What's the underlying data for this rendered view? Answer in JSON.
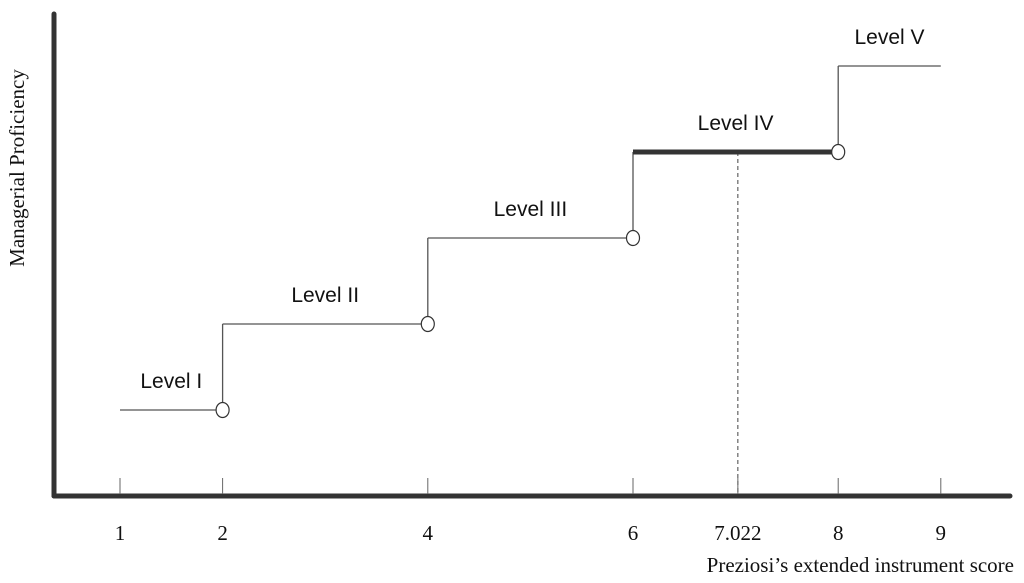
{
  "chart_data": {
    "type": "line",
    "title": "",
    "xlabel": "Preziosi’s extended instrument score",
    "ylabel": "Managerial Proficiency",
    "xlim": [
      0.4,
      9.7
    ],
    "ylim": [
      0,
      5.5
    ],
    "x_ticks": [
      {
        "value": 1,
        "label": "1"
      },
      {
        "value": 2,
        "label": "2"
      },
      {
        "value": 4,
        "label": "4"
      },
      {
        "value": 6,
        "label": "6"
      },
      {
        "value": 7.022,
        "label": "7.022"
      },
      {
        "value": 8,
        "label": "8"
      },
      {
        "value": 9,
        "label": "9"
      }
    ],
    "levels": [
      {
        "name": "Level I",
        "y": 1,
        "x_start": 1,
        "x_end": 2,
        "highlight": false
      },
      {
        "name": "Level II",
        "y": 2,
        "x_start": 2,
        "x_end": 4,
        "highlight": false
      },
      {
        "name": "Level III",
        "y": 3,
        "x_start": 4,
        "x_end": 6,
        "highlight": false
      },
      {
        "name": "Level IV",
        "y": 4,
        "x_start": 6,
        "x_end": 8,
        "highlight": true
      },
      {
        "name": "Level V",
        "y": 5,
        "x_start": 8,
        "x_end": 9,
        "highlight": false
      }
    ],
    "breakpoints": [
      2,
      4,
      6,
      8
    ],
    "marker_x": 7.022,
    "grid": false,
    "colors": {
      "axis": "#333333",
      "step": "#555555",
      "highlight": "#333333"
    }
  }
}
